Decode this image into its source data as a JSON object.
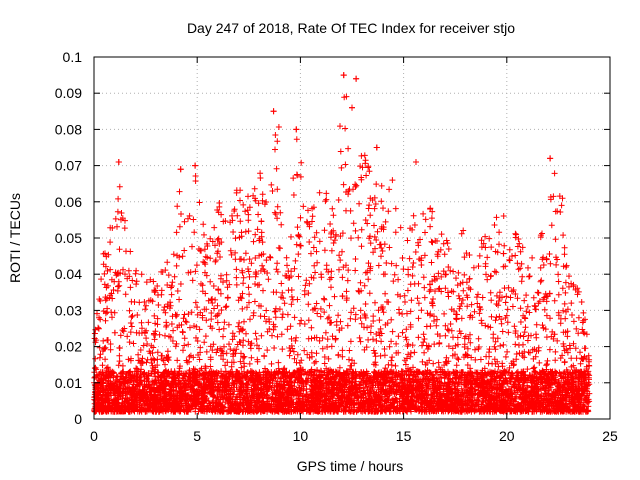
{
  "chart_data": {
    "type": "scatter",
    "title": "Day 247 of 2018, Rate Of TEC Index for receiver stjo",
    "xlabel": "GPS time / hours",
    "ylabel": "ROTI / TECUs",
    "xlim": [
      0,
      25
    ],
    "ylim": [
      0,
      0.1
    ],
    "x_ticks": [
      0,
      5,
      10,
      15,
      20,
      25
    ],
    "y_ticks": [
      0,
      0.01,
      0.02,
      0.03,
      0.04,
      0.05,
      0.06,
      0.07,
      0.08,
      0.09,
      0.1
    ],
    "x_tick_labels": [
      "0",
      "5",
      "10",
      "15",
      "20",
      "25"
    ],
    "y_tick_labels": [
      "0",
      "0.01",
      "0.02",
      "0.03",
      "0.04",
      "0.05",
      "0.06",
      "0.07",
      "0.08",
      "0.09",
      "0.1"
    ],
    "grid": true,
    "legend": "none",
    "marker": "plus",
    "color": "#ff0000",
    "x_data_range": [
      0,
      24
    ],
    "baseline_roti": 0.008,
    "envelope": {
      "hours": [
        0,
        0.5,
        1,
        1.2,
        1.5,
        2,
        2.5,
        3,
        3.5,
        4,
        4.2,
        4.5,
        5,
        5.5,
        6,
        6.5,
        7,
        7.5,
        8,
        8.5,
        8.9,
        9.3,
        9.8,
        10.3,
        10.8,
        11.2,
        11.7,
        12,
        12.2,
        12.5,
        12.8,
        13.2,
        13.7,
        14.2,
        14.6,
        15,
        15.5,
        16,
        16.5,
        17,
        17.5,
        18,
        18.5,
        19,
        19.5,
        20,
        20.5,
        21,
        21.5,
        22,
        22.3,
        22.7,
        23,
        23.5,
        24
      ],
      "max_roti": [
        0.028,
        0.048,
        0.06,
        0.072,
        0.055,
        0.042,
        0.04,
        0.038,
        0.045,
        0.058,
        0.069,
        0.056,
        0.07,
        0.05,
        0.06,
        0.058,
        0.066,
        0.062,
        0.07,
        0.062,
        0.085,
        0.055,
        0.08,
        0.062,
        0.064,
        0.068,
        0.06,
        0.09,
        0.095,
        0.08,
        0.094,
        0.07,
        0.075,
        0.062,
        0.07,
        0.05,
        0.058,
        0.071,
        0.06,
        0.052,
        0.04,
        0.058,
        0.048,
        0.052,
        0.056,
        0.057,
        0.052,
        0.044,
        0.05,
        0.06,
        0.072,
        0.062,
        0.04,
        0.038,
        0.022
      ]
    },
    "notable_points": [
      {
        "x": 1.2,
        "y": 0.071
      },
      {
        "x": 4.2,
        "y": 0.069
      },
      {
        "x": 4.9,
        "y": 0.07
      },
      {
        "x": 8.7,
        "y": 0.085
      },
      {
        "x": 9.8,
        "y": 0.08
      },
      {
        "x": 12.1,
        "y": 0.095
      },
      {
        "x": 12.7,
        "y": 0.094
      },
      {
        "x": 12.5,
        "y": 0.086
      },
      {
        "x": 13.7,
        "y": 0.075
      },
      {
        "x": 15.6,
        "y": 0.071
      },
      {
        "x": 22.1,
        "y": 0.072
      }
    ]
  }
}
